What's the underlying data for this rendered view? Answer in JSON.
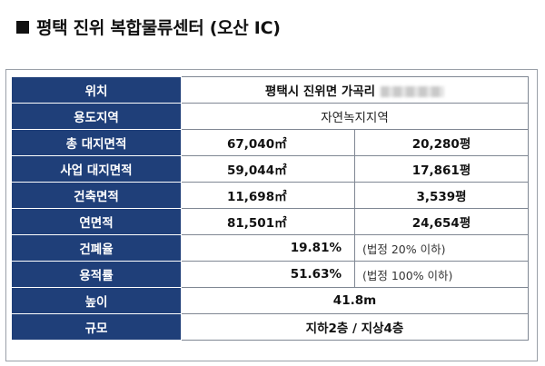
{
  "title": "평택 진위 복합물류센터 (오산 IC)",
  "rows": {
    "location": {
      "label": "위치",
      "value": "평택시 진위면 가곡리"
    },
    "zoning": {
      "label": "용도지역",
      "value": "자연녹지지역"
    },
    "total_site": {
      "label": "총 대지면적",
      "sqm": "67,040㎡",
      "pyeong": "20,280평"
    },
    "biz_site": {
      "label": "사업 대지면적",
      "sqm": "59,044㎡",
      "pyeong": "17,861평"
    },
    "building_area": {
      "label": "건축면적",
      "sqm": "11,698㎡",
      "pyeong": "3,539평"
    },
    "floor_area": {
      "label": "연면적",
      "sqm": "81,501㎡",
      "pyeong": "24,654평"
    },
    "coverage": {
      "label": "건폐율",
      "value": "19.81%",
      "note": "(법정 20% 이하)"
    },
    "far": {
      "label": "용적률",
      "value": "51.63%",
      "note": "(법정 100% 이하)"
    },
    "height": {
      "label": "높이",
      "value": "41.8m"
    },
    "scale": {
      "label": "규모",
      "value": "지하2층 / 지상4층"
    }
  }
}
